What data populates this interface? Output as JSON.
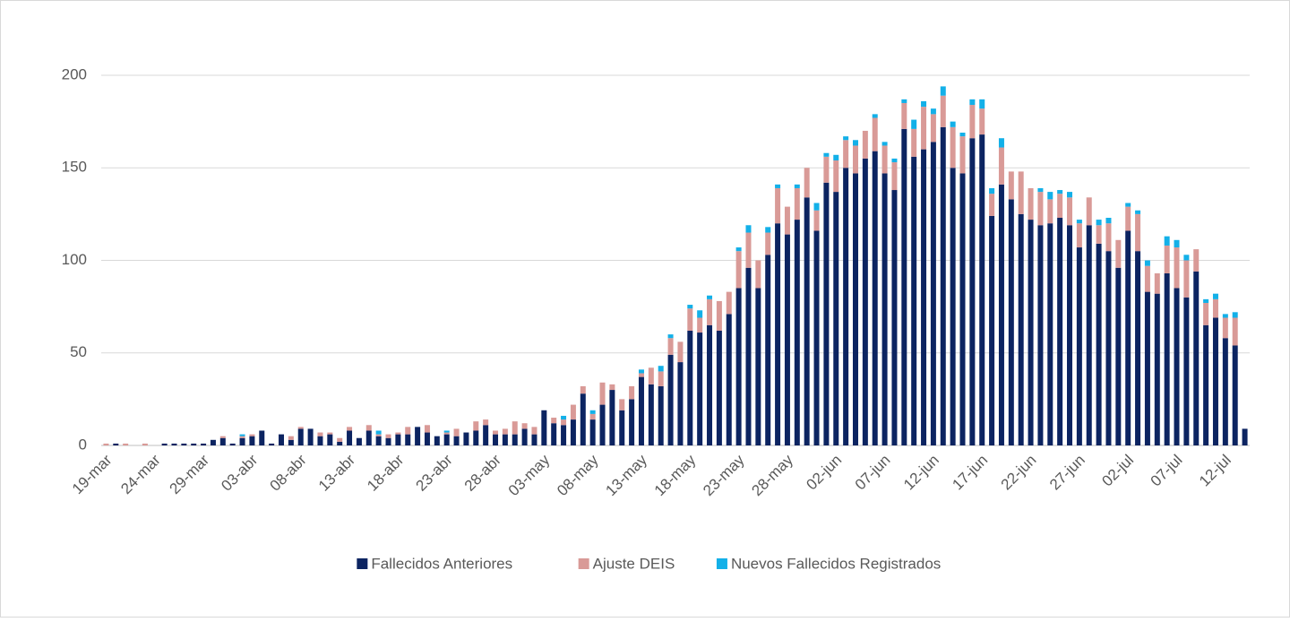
{
  "chart_data": {
    "type": "stacked-bar",
    "categories": [
      "19-mar",
      null,
      null,
      null,
      null,
      "24-mar",
      null,
      null,
      null,
      null,
      "29-mar",
      null,
      null,
      null,
      null,
      "03-abr",
      null,
      null,
      null,
      null,
      "08-abr",
      null,
      null,
      null,
      null,
      "13-abr",
      null,
      null,
      null,
      null,
      "18-abr",
      null,
      null,
      null,
      null,
      "23-abr",
      null,
      null,
      null,
      null,
      "28-abr",
      null,
      null,
      null,
      null,
      "03-may",
      null,
      null,
      null,
      null,
      "08-may",
      null,
      null,
      null,
      null,
      "13-may",
      null,
      null,
      null,
      null,
      "18-may",
      null,
      null,
      null,
      null,
      "23-may",
      null,
      null,
      null,
      null,
      "28-may",
      null,
      null,
      null,
      null,
      "02-jun",
      null,
      null,
      null,
      null,
      "07-jun",
      null,
      null,
      null,
      null,
      "12-jun",
      null,
      null,
      null,
      null,
      "17-jun",
      null,
      null,
      null,
      null,
      "22-jun",
      null,
      null,
      null,
      null,
      "27-jun",
      null,
      null,
      null,
      null,
      "02-jul",
      null,
      null,
      null,
      null,
      "07-jul",
      null,
      null,
      null,
      null,
      "12-jul",
      null,
      null
    ],
    "series": [
      {
        "name": "Fallecidos Anteriores",
        "color": "#0c2461",
        "values": [
          0,
          1,
          0,
          0,
          0,
          0,
          1,
          1,
          1,
          1,
          1,
          3,
          4,
          1,
          4,
          5,
          8,
          1,
          6,
          3,
          9,
          9,
          5,
          6,
          2,
          8,
          4,
          8,
          5,
          4,
          6,
          6,
          10,
          7,
          5,
          6,
          5,
          7,
          8,
          11,
          6,
          6,
          6,
          9,
          6,
          19,
          12,
          11,
          14,
          28,
          14,
          22,
          30,
          19,
          25,
          37,
          33,
          32,
          49,
          45,
          62,
          61,
          65,
          62,
          71,
          85,
          96,
          85,
          103,
          120,
          114,
          122,
          134,
          116,
          142,
          137,
          150,
          147,
          155,
          159,
          147,
          138,
          171,
          156,
          160,
          164,
          172,
          150,
          147,
          166,
          168,
          124,
          141,
          133,
          125,
          122,
          119,
          120,
          123,
          119,
          107,
          119,
          109,
          105,
          96,
          116,
          105,
          83,
          82,
          93,
          85,
          80,
          94,
          65,
          69,
          58,
          54,
          9
        ]
      },
      {
        "name": "Ajuste DEIS",
        "color": "#d99a97",
        "values": [
          1,
          0,
          1,
          0,
          1,
          0,
          0,
          0,
          0,
          0,
          0,
          0,
          1,
          0,
          1,
          1,
          0,
          0,
          0,
          2,
          1,
          0,
          2,
          1,
          2,
          2,
          0,
          3,
          1,
          2,
          1,
          4,
          0,
          4,
          0,
          1,
          4,
          0,
          5,
          3,
          2,
          3,
          7,
          3,
          4,
          0,
          3,
          3,
          8,
          4,
          3,
          12,
          3,
          6,
          7,
          2,
          9,
          8,
          9,
          11,
          12,
          8,
          14,
          16,
          12,
          20,
          19,
          15,
          12,
          19,
          15,
          17,
          16,
          11,
          14,
          17,
          15,
          15,
          15,
          18,
          15,
          15,
          14,
          15,
          23,
          15,
          17,
          22,
          20,
          18,
          14,
          12,
          20,
          15,
          23,
          17,
          18,
          13,
          13,
          15,
          13,
          15,
          10,
          15,
          15,
          13,
          20,
          14,
          11,
          15,
          22,
          20,
          12,
          12,
          10,
          11,
          15,
          0
        ]
      },
      {
        "name": "Nuevos Fallecidos Registrados",
        "color": "#13b0e8",
        "values": [
          0,
          0,
          0,
          0,
          0,
          0,
          0,
          0,
          0,
          0,
          0,
          0,
          0,
          0,
          1,
          0,
          0,
          0,
          0,
          0,
          0,
          0,
          0,
          0,
          0,
          0,
          0,
          0,
          2,
          0,
          0,
          0,
          0,
          0,
          0,
          1,
          0,
          0,
          0,
          0,
          0,
          0,
          0,
          0,
          0,
          0,
          0,
          2,
          0,
          0,
          2,
          0,
          0,
          0,
          0,
          2,
          0,
          3,
          2,
          0,
          2,
          4,
          2,
          0,
          0,
          2,
          4,
          0,
          3,
          2,
          0,
          2,
          0,
          4,
          2,
          3,
          2,
          3,
          0,
          2,
          2,
          2,
          2,
          5,
          3,
          3,
          5,
          3,
          2,
          3,
          5,
          3,
          5,
          0,
          0,
          0,
          2,
          4,
          2,
          3,
          2,
          0,
          3,
          3,
          0,
          2,
          2,
          3,
          0,
          5,
          4,
          3,
          0,
          2,
          3,
          2,
          3,
          0
        ]
      }
    ],
    "ylim": [
      0,
      200
    ],
    "yticks": [
      0,
      50,
      100,
      150,
      200
    ],
    "grid": true,
    "legend": "bottom"
  }
}
